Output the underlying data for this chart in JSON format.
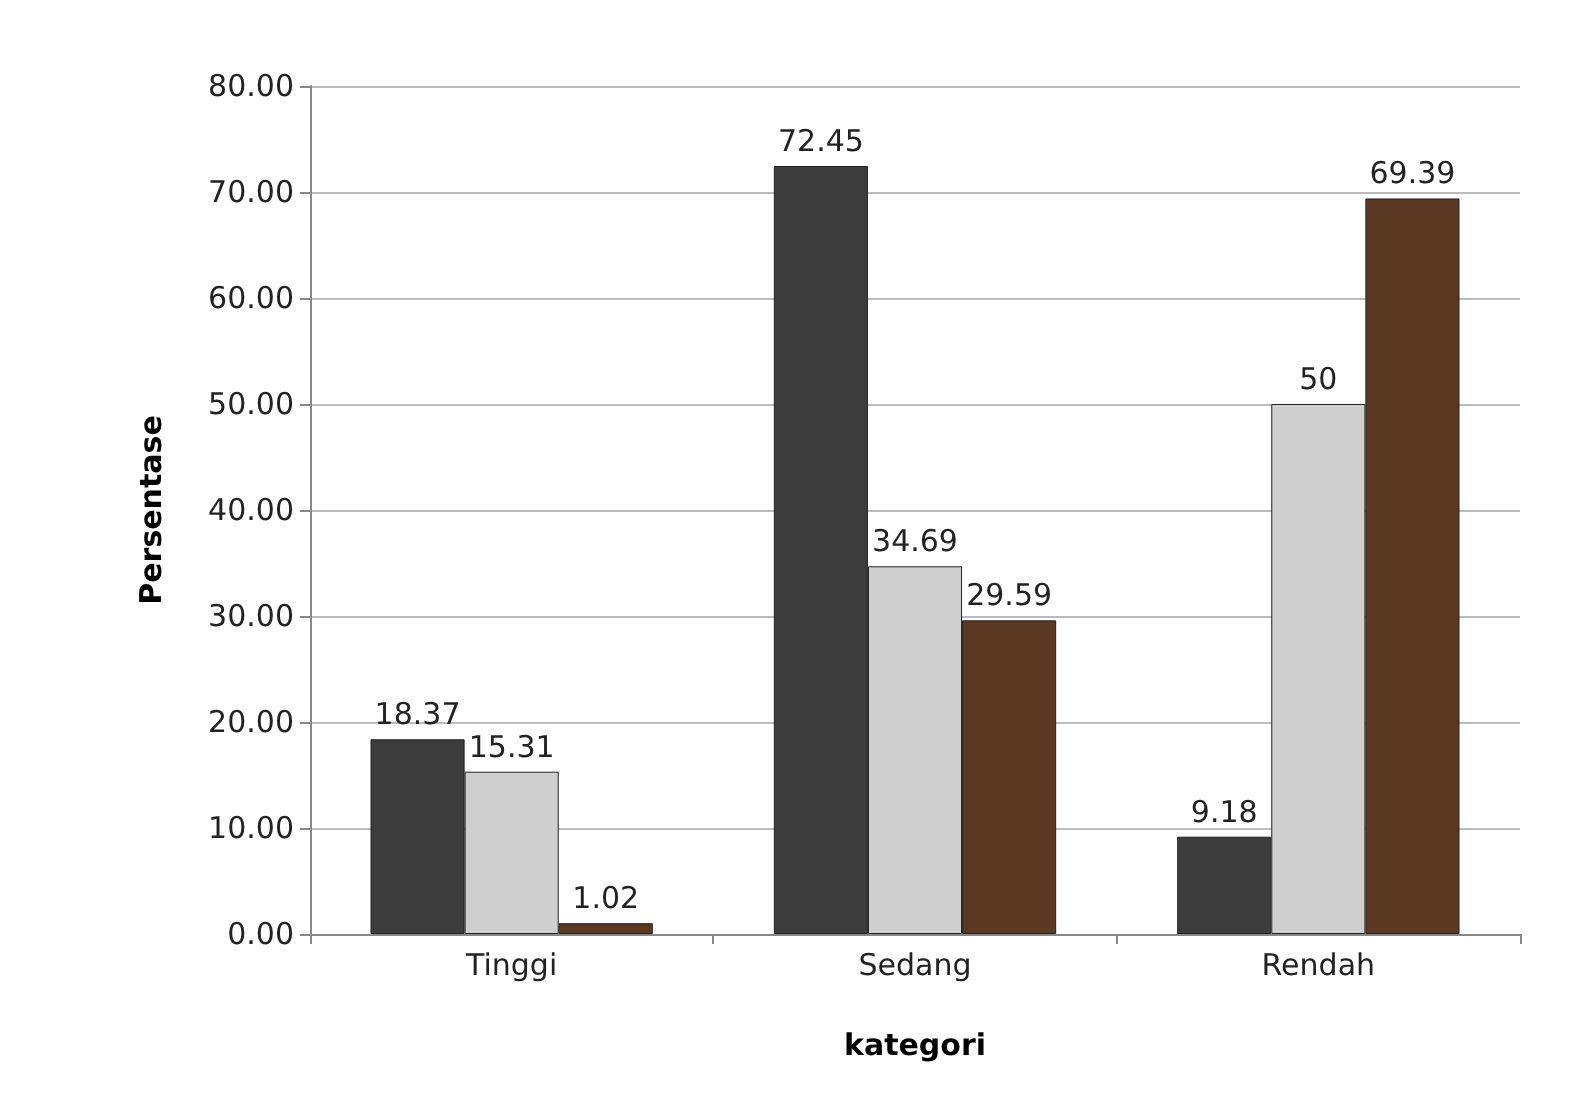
{
  "chart_data": {
    "type": "bar",
    "xlabel": "kategori",
    "ylabel": "Persentase",
    "categories": [
      "Tinggi",
      "Sedang",
      "Rendah"
    ],
    "series": [
      {
        "color": "#3c3c3c",
        "values": [
          18.37,
          72.45,
          9.18
        ]
      },
      {
        "color": "#cfcfcf",
        "values": [
          15.31,
          34.69,
          50
        ]
      },
      {
        "color": "#5a3822",
        "values": [
          1.02,
          29.59,
          69.39
        ]
      }
    ],
    "ylim": [
      0,
      80
    ],
    "yticks": [
      {
        "value": 0,
        "label": "0.00"
      },
      {
        "value": 10,
        "label": "10.00"
      },
      {
        "value": 20,
        "label": "20.00"
      },
      {
        "value": 30,
        "label": "30.00"
      },
      {
        "value": 40,
        "label": "40.00"
      },
      {
        "value": 50,
        "label": "50.00"
      },
      {
        "value": 60,
        "label": "60.00"
      },
      {
        "value": 70,
        "label": "70.00"
      },
      {
        "value": 80,
        "label": "80.00"
      }
    ],
    "grid": "y",
    "data_labels": true
  }
}
